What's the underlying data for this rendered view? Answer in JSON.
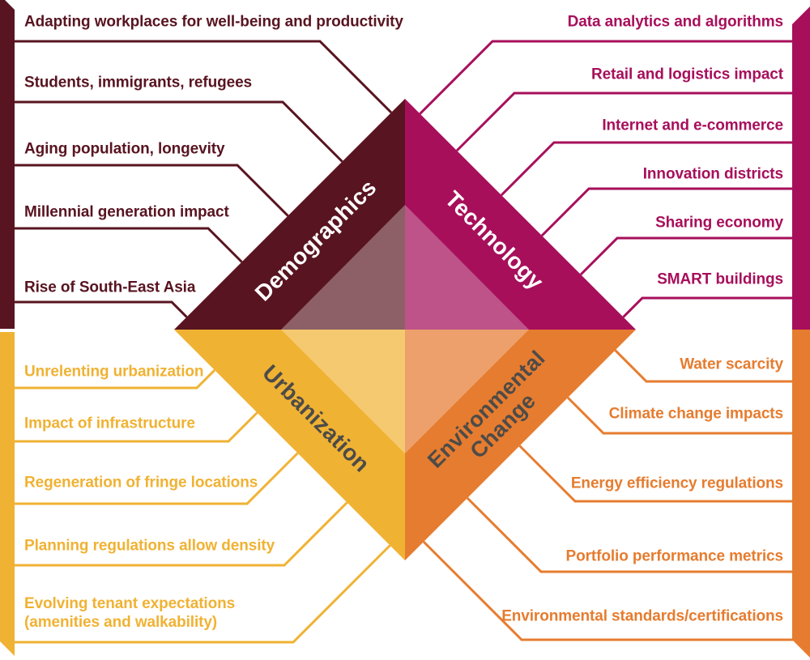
{
  "background": "#ffffff",
  "quadrants": [
    {
      "key": "demographics",
      "label": "Demographics",
      "color": "#581420",
      "inner_color": "#8d5f66",
      "title_color": "#ffffff",
      "items": [
        "Adapting workplaces for well-being and productivity",
        "Students, immigrants, refugees",
        "Aging population, longevity",
        "Millennial generation impact",
        "Rise of South-East Asia"
      ]
    },
    {
      "key": "technology",
      "label": "Technology",
      "color": "#a70f5b",
      "inner_color": "#bd5389",
      "title_color": "#ffffff",
      "items": [
        "Data analytics and algorithms",
        "Retail and logistics impact",
        "Internet and e-commerce",
        "Innovation districts",
        "Sharing economy",
        "SMART buildings"
      ]
    },
    {
      "key": "urbanization",
      "label": "Urbanization",
      "color": "#f0b233",
      "inner_color": "#f5c96f",
      "title_color": "#4d4b48",
      "items": [
        "Unrelenting urbanization",
        "Impact of infrastructure",
        "Regeneration of fringe locations",
        "Planning regulations allow density",
        "Evolving tenant expectations (amenities and walkability)"
      ]
    },
    {
      "key": "environmental",
      "label": "Environmental Change",
      "color": "#e67c2f",
      "inner_color": "#eda06b",
      "title_color": "#4d4b48",
      "items": [
        "Water scarcity",
        "Climate change impacts",
        "Energy efficiency regulations",
        "Portfolio performance metrics",
        "Environmental standards/certifications"
      ]
    }
  ]
}
